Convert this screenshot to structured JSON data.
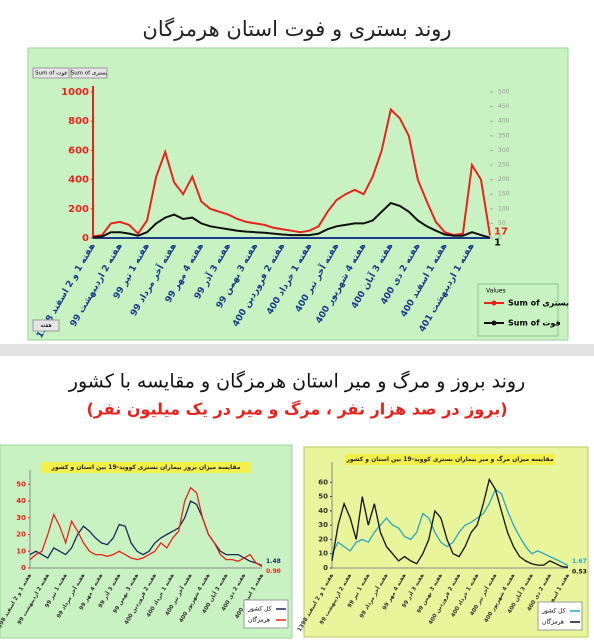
{
  "section": {
    "title": "روند بروز و مرگ و میر استان هرمزگان و مقایسه با کشور",
    "subtitle": "(بروز در صد هزار نفر ، مرگ و میر در یک میلیون نفر)"
  },
  "chart_data": [
    {
      "type": "line",
      "title": "روند بستری و فوت استان هرمزگان",
      "buttons": [
        "Sum of فوت",
        "Sum of بستری"
      ],
      "axis_button": "هفته",
      "legend_title": "Values",
      "categories": [
        "هفته 1 و 2 اسفند 1398",
        null,
        null,
        "هفته 2 اردیبهشت 99",
        null,
        null,
        "هفته 1 تیر 99",
        null,
        null,
        "هفته آخر مرداد 99",
        null,
        null,
        "هفته 4 مهر 99",
        null,
        null,
        "هفته 3 آذر 99",
        null,
        null,
        "هفته 3 بهمن 99",
        null,
        null,
        "هفته 2 فروردین 400",
        null,
        null,
        "هفته 1 خرداد 400",
        null,
        null,
        "هفته آخر تیر 400",
        null,
        null,
        "هفته 4 شهریور 400",
        null,
        null,
        "هفته 3 آبان 400",
        null,
        null,
        "هفته 2 دی 400",
        null,
        null,
        "هفته 1 اسفند 400",
        null,
        null,
        "هفته 1 اردیبهشت 401",
        null,
        null
      ],
      "series": [
        {
          "name": "Sum of بستری",
          "color": "#e8231d",
          "values": [
            10,
            20,
            100,
            110,
            90,
            30,
            120,
            420,
            590,
            380,
            300,
            420,
            250,
            200,
            180,
            160,
            130,
            110,
            100,
            90,
            70,
            60,
            50,
            40,
            50,
            80,
            180,
            260,
            300,
            330,
            300,
            420,
            600,
            880,
            820,
            700,
            400,
            250,
            110,
            40,
            20,
            30,
            500,
            400,
            17
          ]
        },
        {
          "name": "Sum of فوت",
          "color": "#111111",
          "axis": "y2",
          "values": [
            2,
            5,
            20,
            20,
            15,
            8,
            20,
            50,
            70,
            80,
            65,
            70,
            50,
            40,
            35,
            30,
            25,
            22,
            20,
            18,
            15,
            12,
            10,
            10,
            10,
            15,
            30,
            40,
            45,
            50,
            50,
            60,
            90,
            120,
            110,
            90,
            60,
            40,
            25,
            12,
            8,
            8,
            20,
            10,
            1
          ]
        }
      ],
      "ylim": [
        0,
        1000
      ],
      "yticks": [
        0,
        200,
        400,
        600,
        800,
        1000
      ],
      "y2lim": [
        0,
        500
      ],
      "y2ticks": [
        0,
        50,
        100,
        150,
        200,
        250,
        300,
        350,
        400,
        450,
        500
      ]
    },
    {
      "type": "line",
      "title": "مقایسه میزان بروز بیماران بستری کووید-19 بین استان و کشور",
      "categories": [
        "هفته 1 و 2 اسفند 1398",
        null,
        null,
        "هفته 2 اردیبهشت 99",
        null,
        null,
        "هفته 1 تیر 99",
        null,
        null,
        "هفته آخر مرداد 99",
        null,
        null,
        "هفته 4 مهر 99",
        null,
        null,
        "هفته 3 آذر 99",
        null,
        null,
        "هفته 3 بهمن 99",
        null,
        null,
        "هفته 2 فروردین 400",
        null,
        null,
        "هفته 1 خرداد 400",
        null,
        null,
        "هفته آخر تیر 400",
        null,
        null,
        "هفته 4 شهریور 400",
        null,
        null,
        "هفته 3 آبان 400",
        null,
        null,
        "هفته 2 دی 400",
        null,
        null,
        "هفته 1 اسفند 400"
      ],
      "series": [
        {
          "name": "کل کشور",
          "color": "#1b2a5c",
          "values": [
            8,
            10,
            8,
            6,
            12,
            10,
            8,
            12,
            20,
            25,
            22,
            18,
            15,
            14,
            18,
            26,
            25,
            15,
            10,
            8,
            10,
            15,
            18,
            20,
            22,
            24,
            30,
            40,
            38,
            30,
            20,
            15,
            10,
            8,
            8,
            8,
            6,
            4,
            3,
            1.48
          ]
        },
        {
          "name": "هرمزگان",
          "color": "#e8231d",
          "end_label": "0.90",
          "values": [
            5,
            8,
            10,
            20,
            32,
            25,
            15,
            28,
            22,
            15,
            10,
            8,
            8,
            7,
            8,
            10,
            8,
            6,
            5,
            6,
            8,
            10,
            15,
            12,
            18,
            22,
            40,
            48,
            45,
            30,
            20,
            15,
            8,
            5,
            5,
            4,
            6,
            8,
            3,
            0.9
          ]
        }
      ],
      "ylim": [
        0,
        55
      ],
      "yticks": [
        0,
        10,
        20,
        30,
        40,
        50
      ]
    },
    {
      "type": "line",
      "title": "مقایسه میزان مرگ و میر بیماران بستری کووید-19 بین استان و کشور",
      "categories": [
        "هفته 1 و 2 اسفند 1398",
        null,
        null,
        "هفته 2 اردیبهشت 99",
        null,
        null,
        "هفته 1 تیر 99",
        null,
        null,
        "هفته آخر مرداد 99",
        null,
        null,
        "هفته 4 مهر 99",
        null,
        null,
        "هفته 3 آذر 99",
        null,
        null,
        "هفته 3 بهمن 99",
        null,
        null,
        "هفته 2 فروردین 400",
        null,
        null,
        "هفته 1 خرداد 400",
        null,
        null,
        "هفته آخر تیر 400",
        null,
        null,
        "هفته 4 شهریور 400",
        null,
        null,
        "هفته 3 آبان 400",
        null,
        null,
        "هفته 2 دی 400",
        null,
        null,
        "هفته 1 اسفند 400"
      ],
      "series": [
        {
          "name": "کل کشور",
          "color": "#2aa6c6",
          "values": [
            10,
            18,
            15,
            12,
            18,
            20,
            18,
            25,
            30,
            35,
            30,
            28,
            22,
            20,
            25,
            38,
            35,
            25,
            18,
            15,
            18,
            25,
            30,
            32,
            35,
            38,
            45,
            55,
            52,
            40,
            30,
            22,
            15,
            10,
            12,
            10,
            8,
            6,
            4,
            1.67
          ]
        },
        {
          "name": "هرمزگان",
          "color": "#111111",
          "values": [
            5,
            30,
            45,
            35,
            20,
            50,
            30,
            45,
            25,
            15,
            10,
            5,
            8,
            5,
            3,
            10,
            20,
            40,
            35,
            20,
            10,
            8,
            15,
            25,
            30,
            45,
            62,
            55,
            40,
            25,
            15,
            8,
            5,
            3,
            2,
            2,
            5,
            3,
            1,
            0.53
          ]
        }
      ],
      "ylim": [
        0,
        70
      ],
      "yticks": [
        0,
        10,
        20,
        30,
        40,
        50,
        60
      ]
    }
  ]
}
